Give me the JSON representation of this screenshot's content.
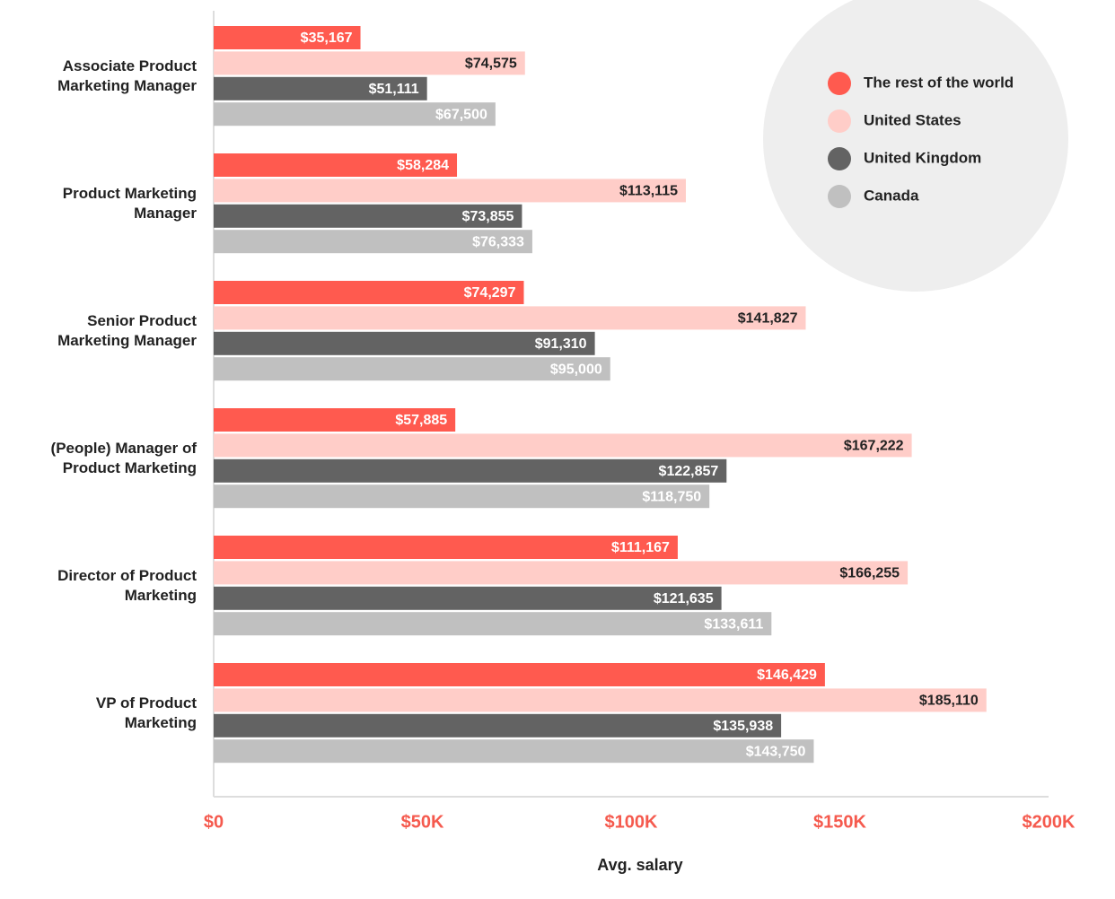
{
  "chart_data": {
    "type": "bar",
    "orientation": "horizontal",
    "x_label": "Avg. salary",
    "categories": [
      "Associate Product\nMarketing Manager",
      "Product Marketing\nManager",
      "Senior Product\nMarketing Manager",
      "(People) Manager of\nProduct Marketing",
      "Director of Product\nMarketing",
      "VP of Product\nMarketing"
    ],
    "series": [
      {
        "name": "The rest of the world",
        "color": "#ff5a4f",
        "label_color": "#ffffff",
        "values": [
          35167,
          58284,
          74297,
          57885,
          111167,
          146429
        ],
        "value_labels": [
          "$35,167",
          "$58,284",
          "$74,297",
          "$57,885",
          "$111,167",
          "$146,429"
        ]
      },
      {
        "name": "United States",
        "color": "#ffcdc8",
        "label_color": "#222222",
        "values": [
          74575,
          113115,
          141827,
          167222,
          166255,
          185110
        ],
        "value_labels": [
          "$74,575",
          "$113,115",
          "$141,827",
          "$167,222",
          "$166,255",
          "$185,110"
        ]
      },
      {
        "name": "United Kingdom",
        "color": "#636363",
        "label_color": "#ffffff",
        "values": [
          51111,
          73855,
          91310,
          122857,
          121635,
          135938
        ],
        "value_labels": [
          "$51,111",
          "$73,855",
          "$91,310",
          "$122,857",
          "$121,635",
          "$135,938"
        ]
      },
      {
        "name": "Canada",
        "color": "#c0c0c0",
        "label_color": "#ffffff",
        "values": [
          67500,
          76333,
          95000,
          118750,
          133611,
          143750
        ],
        "value_labels": [
          "$67,500",
          "$76,333",
          "$95,000",
          "$118,750",
          "$133,611",
          "$143,750"
        ]
      }
    ],
    "xlim": [
      0,
      200000
    ],
    "xticks": [
      {
        "value": 0,
        "label": "$0"
      },
      {
        "value": 50000,
        "label": "$50K"
      },
      {
        "value": 100000,
        "label": "$100K"
      },
      {
        "value": 150000,
        "label": "$150K"
      },
      {
        "value": 200000,
        "label": "$200K"
      }
    ],
    "tick_color": "#f55a4e",
    "legend": "top right"
  }
}
